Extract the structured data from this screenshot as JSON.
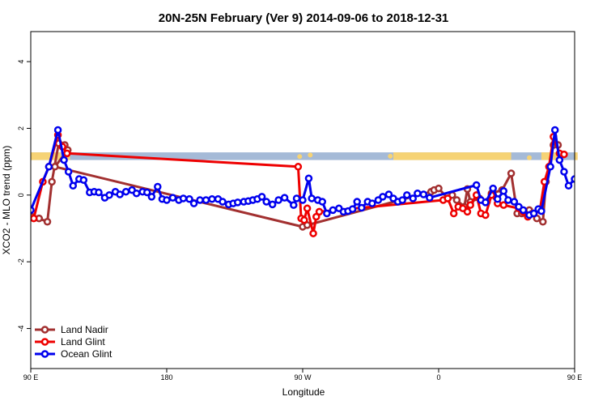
{
  "chart_data": {
    "type": "line",
    "title": "20N-25N February (Ver 9)   2014-09-06 to 2018-12-31",
    "xlabel": "Longitude",
    "ylabel": "XCO2 - MLO trend (ppm)",
    "xlim": [
      -90,
      270
    ],
    "ylim": [
      -5.2,
      4.9
    ],
    "x_ticks": [
      {
        "value": -90,
        "label": "90 E"
      },
      {
        "value": 0,
        "label": "180"
      },
      {
        "value": 90,
        "label": "90 W"
      },
      {
        "value": 180,
        "label": "0"
      },
      {
        "value": 270,
        "label": "90 E"
      },
      {
        "value": 360,
        "label": "180"
      }
    ],
    "y_ticks": [
      -4,
      -2,
      0,
      2,
      4
    ],
    "legend": {
      "position": "bottom-left",
      "entries": [
        "Land Nadir",
        "Land Glint",
        "Ocean Glint"
      ]
    },
    "land_band": {
      "ymin": 1.05,
      "ymax": 1.28,
      "ocean_color": "#a5bad7",
      "land_color": "#f6d375"
    },
    "series": [
      {
        "name": "Land Nadir",
        "color": "#a23030",
        "points": [
          [
            -89,
            -0.65
          ],
          [
            -84.5,
            -0.7
          ],
          [
            -79,
            -0.8
          ],
          [
            -76,
            0.4
          ],
          [
            -71.5,
            1.55
          ],
          [
            -67.5,
            1.5
          ],
          [
            -65.5,
            1.35
          ],
          [
            -74,
            0.85
          ],
          [
            90,
            -0.95
          ],
          [
            93,
            -0.9
          ],
          [
            175,
            0.1
          ],
          [
            177,
            0.15
          ],
          [
            180,
            0.2
          ],
          [
            186,
            -0.1
          ],
          [
            189,
            0.0
          ],
          [
            192,
            -0.15
          ],
          [
            197,
            -0.35
          ],
          [
            199,
            0.18
          ],
          [
            201,
            -0.2
          ],
          [
            207,
            -0.1
          ],
          [
            212,
            -0.2
          ],
          [
            215,
            0.05
          ],
          [
            222,
            0.15
          ],
          [
            228,
            0.65
          ],
          [
            232,
            -0.55
          ],
          [
            235,
            -0.55
          ],
          [
            240,
            -0.45
          ],
          [
            242,
            -0.55
          ],
          [
            245,
            -0.7
          ],
          [
            249,
            -0.8
          ],
          [
            251,
            0.4
          ],
          [
            256,
            1.5
          ],
          [
            259,
            1.5
          ]
        ]
      },
      {
        "name": "Land Glint",
        "color": "#ee0000",
        "points": [
          [
            -88,
            -0.7
          ],
          [
            -82,
            0.4
          ],
          [
            -78,
            0.85
          ],
          [
            -72,
            1.8
          ],
          [
            -69,
            1.45
          ],
          [
            -66,
            1.25
          ],
          [
            87,
            0.85
          ],
          [
            89,
            -0.7
          ],
          [
            91,
            -0.75
          ],
          [
            93,
            -0.4
          ],
          [
            97,
            -1.15
          ],
          [
            99,
            -0.65
          ],
          [
            101,
            -0.5
          ],
          [
            183,
            -0.15
          ],
          [
            186,
            -0.1
          ],
          [
            190,
            -0.55
          ],
          [
            193,
            -0.35
          ],
          [
            196,
            -0.4
          ],
          [
            199,
            -0.5
          ],
          [
            201,
            -0.3
          ],
          [
            205,
            0.0
          ],
          [
            208,
            -0.55
          ],
          [
            211,
            -0.6
          ],
          [
            215,
            0.0
          ],
          [
            219,
            -0.25
          ],
          [
            223,
            -0.3
          ],
          [
            233,
            -0.4
          ],
          [
            236,
            -0.5
          ],
          [
            239,
            -0.65
          ],
          [
            243,
            -0.55
          ],
          [
            247,
            -0.45
          ],
          [
            250,
            0.4
          ],
          [
            253,
            0.85
          ],
          [
            256,
            1.75
          ],
          [
            260,
            1.25
          ],
          [
            263,
            1.22
          ]
        ]
      },
      {
        "name": "Ocean Glint",
        "color": "#0000ee",
        "points": [
          [
            -90,
            -0.45
          ],
          [
            -78,
            0.85
          ],
          [
            -72,
            1.95
          ],
          [
            -68,
            1.05
          ],
          [
            -65,
            0.7
          ],
          [
            -62,
            0.28
          ],
          [
            -58,
            0.48
          ],
          [
            -55,
            0.45
          ],
          [
            -51,
            0.08
          ],
          [
            -48,
            0.1
          ],
          [
            -45,
            0.08
          ],
          [
            -41,
            -0.08
          ],
          [
            -38,
            0.0
          ],
          [
            -34,
            0.1
          ],
          [
            -31,
            0.02
          ],
          [
            -27,
            0.1
          ],
          [
            -23,
            0.15
          ],
          [
            -20,
            0.05
          ],
          [
            -16,
            0.1
          ],
          [
            -13,
            0.08
          ],
          [
            -10,
            -0.05
          ],
          [
            -6,
            0.25
          ],
          [
            -3,
            -0.12
          ],
          [
            0,
            -0.15
          ],
          [
            4,
            -0.08
          ],
          [
            8,
            -0.15
          ],
          [
            11,
            -0.1
          ],
          [
            15,
            -0.12
          ],
          [
            18,
            -0.25
          ],
          [
            22,
            -0.15
          ],
          [
            26,
            -0.15
          ],
          [
            30,
            -0.12
          ],
          [
            34,
            -0.12
          ],
          [
            37,
            -0.2
          ],
          [
            41,
            -0.28
          ],
          [
            44,
            -0.25
          ],
          [
            47,
            -0.22
          ],
          [
            51,
            -0.2
          ],
          [
            54,
            -0.18
          ],
          [
            57,
            -0.15
          ],
          [
            60,
            -0.12
          ],
          [
            63,
            -0.05
          ],
          [
            66,
            -0.2
          ],
          [
            70,
            -0.28
          ],
          [
            74,
            -0.15
          ],
          [
            78,
            -0.08
          ],
          [
            84,
            -0.3
          ],
          [
            86,
            -0.1
          ],
          [
            90,
            -0.15
          ],
          [
            94,
            0.5
          ],
          [
            96,
            -0.1
          ],
          [
            100,
            -0.15
          ],
          [
            103,
            -0.2
          ],
          [
            106,
            -0.55
          ],
          [
            110,
            -0.45
          ],
          [
            114,
            -0.4
          ],
          [
            117,
            -0.5
          ],
          [
            120,
            -0.48
          ],
          [
            123,
            -0.42
          ],
          [
            126,
            -0.2
          ],
          [
            129,
            -0.38
          ],
          [
            133,
            -0.2
          ],
          [
            136,
            -0.25
          ],
          [
            140,
            -0.15
          ],
          [
            143,
            -0.05
          ],
          [
            147,
            0.02
          ],
          [
            150,
            -0.1
          ],
          [
            153,
            -0.2
          ],
          [
            156,
            -0.15
          ],
          [
            159,
            0.0
          ],
          [
            163,
            -0.1
          ],
          [
            166,
            0.05
          ],
          [
            170,
            0.02
          ],
          [
            174,
            -0.08
          ],
          [
            205,
            0.3
          ],
          [
            208,
            -0.15
          ],
          [
            211,
            -0.22
          ],
          [
            216,
            0.2
          ],
          [
            219,
            -0.12
          ],
          [
            223,
            0.12
          ],
          [
            226,
            -0.15
          ],
          [
            230,
            -0.2
          ],
          [
            233,
            -0.35
          ],
          [
            236,
            -0.45
          ],
          [
            240,
            -0.6
          ],
          [
            243,
            -0.55
          ],
          [
            246,
            -0.42
          ],
          [
            248,
            -0.48
          ],
          [
            254,
            0.85
          ],
          [
            257,
            1.95
          ],
          [
            260,
            1.05
          ],
          [
            263,
            0.7
          ],
          [
            266,
            0.28
          ],
          [
            270,
            0.48
          ],
          [
            273,
            0.45
          ],
          [
            276,
            0.05
          ],
          [
            280,
            0.12
          ],
          [
            283,
            0.1
          ],
          [
            287,
            -0.05
          ],
          [
            290,
            0.02
          ],
          [
            293,
            0.1
          ],
          [
            297,
            0.05
          ],
          [
            300,
            0.1
          ]
        ]
      }
    ]
  }
}
